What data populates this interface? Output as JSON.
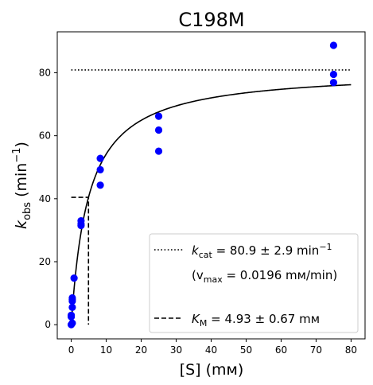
{
  "chart_data": {
    "type": "scatter",
    "title": "C198M",
    "xlabel": "[S] (mм)",
    "ylabel_main": "k",
    "ylabel_sub": "obs",
    "ylabel_rest": " (min",
    "ylabel_sup": "−1",
    "ylabel_close": ")",
    "xlim": [
      -4,
      84
    ],
    "ylim": [
      -4.5,
      93
    ],
    "xticks": [
      0,
      10,
      20,
      30,
      40,
      50,
      60,
      70,
      80
    ],
    "yticks": [
      0,
      20,
      40,
      60,
      80
    ],
    "grid": false,
    "legend_position": "bottom-right",
    "colors": {
      "points": "#0000ff",
      "lines": "#000000"
    },
    "points": {
      "x": [
        0,
        0,
        0,
        0.3,
        0.3,
        0.3,
        0.3,
        0.3,
        0.8,
        2.8,
        2.8,
        2.8,
        8.3,
        8.3,
        8.3,
        25,
        25,
        25,
        75,
        75,
        75
      ],
      "y": [
        0,
        2.5,
        3,
        5.5,
        7.5,
        8,
        8.5,
        0.5,
        14.8,
        33,
        32,
        31.5,
        52.8,
        49.2,
        44.3,
        66.2,
        61.8,
        55.1,
        88.7,
        79.5,
        76.9
      ]
    },
    "fit": {
      "kcat": 80.9,
      "KM": 4.93,
      "x_start": 0.05,
      "x_end": 80
    },
    "kcat_line": {
      "x": [
        0,
        80
      ],
      "y": 80.9
    },
    "km_line": {
      "x": [
        0,
        4.93
      ],
      "y": 40.45
    },
    "legend": {
      "kcat_main": "k",
      "kcat_sub": "cat",
      "kcat_rest": " = 80.9 ± 2.9 min",
      "kcat_sup": "−1",
      "vmax_open": "(v",
      "vmax_sub": "max",
      "vmax_rest": " = 0.0196 mм/min)",
      "km_main": "K",
      "km_sub": "M",
      "km_rest": " = 4.93 ± 0.67 mм"
    }
  }
}
